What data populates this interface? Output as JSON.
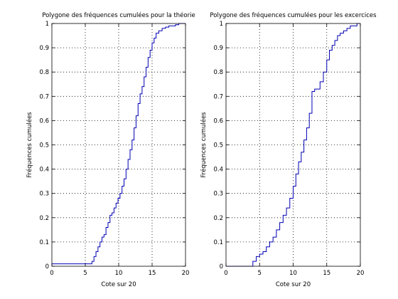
{
  "chart_data": [
    {
      "type": "line",
      "step": true,
      "title": "Polygone des fréquences cumulées pour la théorie",
      "xlabel": "Cote sur 20",
      "ylabel": "Fréquences cumulées",
      "xlim": [
        0,
        20
      ],
      "ylim": [
        0,
        1
      ],
      "xticks": [
        "0",
        "5",
        "10",
        "15",
        "20"
      ],
      "yticks": [
        "0",
        "0.1",
        "0.2",
        "0.3",
        "0.4",
        "0.5",
        "0.6",
        "0.7",
        "0.8",
        "0.9",
        "1"
      ],
      "grid": true,
      "color": "#0000b4",
      "x": [
        0,
        6.0,
        6.3,
        6.6,
        6.9,
        7.2,
        7.5,
        7.8,
        8.1,
        8.4,
        8.7,
        9.0,
        9.3,
        9.6,
        9.9,
        10.2,
        10.5,
        10.8,
        11.1,
        11.4,
        11.7,
        12.0,
        12.3,
        12.6,
        12.9,
        13.2,
        13.5,
        13.8,
        14.1,
        14.4,
        14.7,
        15.0,
        15.3,
        15.6,
        16.0,
        16.5,
        17.0,
        17.5,
        18.0,
        18.5,
        19.0,
        20
      ],
      "y": [
        0.01,
        0.02,
        0.04,
        0.06,
        0.08,
        0.1,
        0.12,
        0.13,
        0.16,
        0.18,
        0.21,
        0.22,
        0.24,
        0.26,
        0.28,
        0.3,
        0.33,
        0.36,
        0.4,
        0.44,
        0.48,
        0.52,
        0.57,
        0.62,
        0.67,
        0.71,
        0.74,
        0.78,
        0.82,
        0.86,
        0.89,
        0.92,
        0.94,
        0.96,
        0.97,
        0.98,
        0.985,
        0.99,
        0.99,
        0.995,
        1.0,
        1.0
      ]
    },
    {
      "type": "line",
      "step": true,
      "title": "Polygone des fréquences cumulées pour les excercices",
      "xlabel": "Cote sur 20",
      "ylabel": "Fréquences cumulées",
      "xlim": [
        0,
        20
      ],
      "ylim": [
        0,
        1
      ],
      "xticks": [
        "0",
        "5",
        "10",
        "15",
        "20"
      ],
      "yticks": [
        "0",
        "0.1",
        "0.2",
        "0.3",
        "0.4",
        "0.5",
        "0.6",
        "0.7",
        "0.8",
        "0.9",
        "1"
      ],
      "grid": true,
      "color": "#0000b4",
      "x": [
        0,
        4.0,
        4.5,
        5.0,
        5.5,
        6.0,
        6.5,
        7.0,
        7.5,
        8.0,
        8.5,
        9.0,
        9.5,
        10.0,
        10.4,
        10.8,
        11.2,
        11.6,
        12.0,
        12.4,
        12.8,
        13.2,
        13.6,
        14.0,
        14.5,
        15.0,
        15.4,
        15.8,
        16.2,
        16.6,
        17.0,
        17.5,
        18.0,
        18.5,
        19.0,
        19.5,
        20
      ],
      "y": [
        0.0,
        0.02,
        0.04,
        0.05,
        0.06,
        0.08,
        0.1,
        0.12,
        0.15,
        0.18,
        0.21,
        0.24,
        0.28,
        0.33,
        0.38,
        0.43,
        0.47,
        0.52,
        0.57,
        0.63,
        0.72,
        0.73,
        0.73,
        0.76,
        0.8,
        0.85,
        0.89,
        0.91,
        0.93,
        0.95,
        0.96,
        0.97,
        0.98,
        0.99,
        0.99,
        1.0,
        1.0
      ]
    }
  ]
}
